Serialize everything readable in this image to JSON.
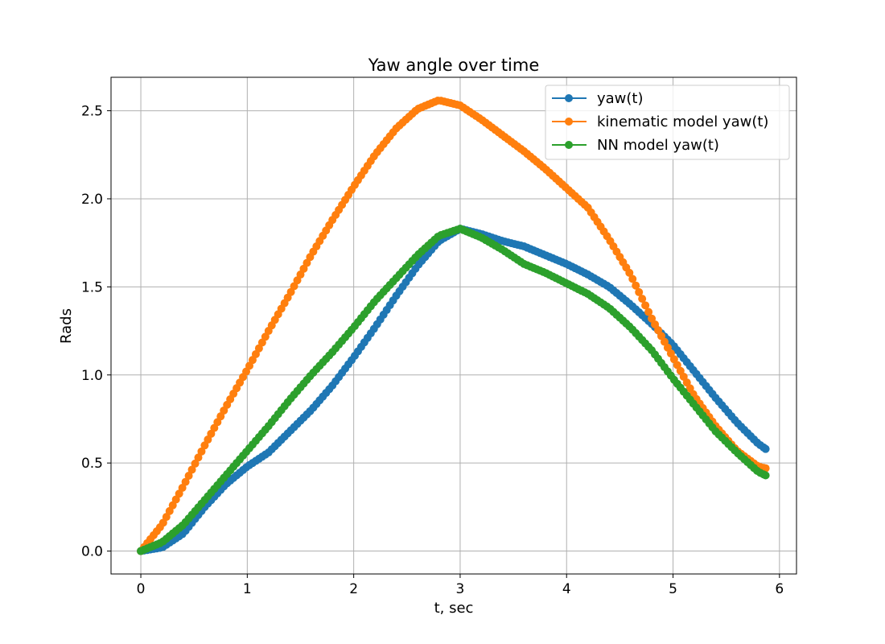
{
  "chart_data": {
    "type": "line",
    "title": "Yaw angle over time",
    "xlabel": "t, sec",
    "ylabel": "Rads",
    "xlim": [
      -0.28,
      6.16
    ],
    "ylim": [
      -0.13,
      2.69
    ],
    "xticks": [
      0,
      1,
      2,
      3,
      4,
      5,
      6
    ],
    "xtick_labels": [
      "0",
      "1",
      "2",
      "3",
      "4",
      "5",
      "6"
    ],
    "yticks": [
      0.0,
      0.5,
      1.0,
      1.5,
      2.0,
      2.5
    ],
    "ytick_labels": [
      "0.0",
      "0.5",
      "1.0",
      "1.5",
      "2.0",
      "2.5"
    ],
    "grid": true,
    "legend_position": "top-right",
    "marker": "circle",
    "x_end": 5.87,
    "sample_step": 0.03,
    "series": [
      {
        "name": "yaw(t)",
        "color": "#1f77b4",
        "points": [
          [
            0,
            0.0
          ],
          [
            0.2,
            0.02
          ],
          [
            0.4,
            0.1
          ],
          [
            0.6,
            0.25
          ],
          [
            0.8,
            0.38
          ],
          [
            1.0,
            0.48
          ],
          [
            1.2,
            0.56
          ],
          [
            1.4,
            0.68
          ],
          [
            1.6,
            0.8
          ],
          [
            1.8,
            0.94
          ],
          [
            2.0,
            1.1
          ],
          [
            2.2,
            1.27
          ],
          [
            2.4,
            1.45
          ],
          [
            2.6,
            1.62
          ],
          [
            2.8,
            1.76
          ],
          [
            3.0,
            1.83
          ],
          [
            3.2,
            1.8
          ],
          [
            3.4,
            1.76
          ],
          [
            3.6,
            1.73
          ],
          [
            3.8,
            1.68
          ],
          [
            4.0,
            1.63
          ],
          [
            4.2,
            1.57
          ],
          [
            4.4,
            1.5
          ],
          [
            4.6,
            1.4
          ],
          [
            4.8,
            1.29
          ],
          [
            5.0,
            1.17
          ],
          [
            5.2,
            1.02
          ],
          [
            5.4,
            0.87
          ],
          [
            5.6,
            0.73
          ],
          [
            5.8,
            0.61
          ],
          [
            5.87,
            0.58
          ]
        ]
      },
      {
        "name": "kinematic model yaw(t)",
        "color": "#ff7f0e",
        "points": [
          [
            0,
            0.0
          ],
          [
            0.2,
            0.15
          ],
          [
            0.4,
            0.37
          ],
          [
            0.6,
            0.6
          ],
          [
            0.8,
            0.82
          ],
          [
            1.0,
            1.03
          ],
          [
            1.2,
            1.25
          ],
          [
            1.4,
            1.46
          ],
          [
            1.6,
            1.68
          ],
          [
            1.8,
            1.88
          ],
          [
            2.0,
            2.07
          ],
          [
            2.2,
            2.25
          ],
          [
            2.4,
            2.4
          ],
          [
            2.6,
            2.51
          ],
          [
            2.8,
            2.56
          ],
          [
            3.0,
            2.53
          ],
          [
            3.2,
            2.45
          ],
          [
            3.4,
            2.36
          ],
          [
            3.6,
            2.27
          ],
          [
            3.8,
            2.17
          ],
          [
            4.0,
            2.06
          ],
          [
            4.2,
            1.95
          ],
          [
            4.4,
            1.77
          ],
          [
            4.6,
            1.57
          ],
          [
            4.8,
            1.32
          ],
          [
            5.0,
            1.1
          ],
          [
            5.2,
            0.88
          ],
          [
            5.4,
            0.71
          ],
          [
            5.6,
            0.57
          ],
          [
            5.8,
            0.48
          ],
          [
            5.87,
            0.47
          ]
        ]
      },
      {
        "name": "NN model yaw(t)",
        "color": "#2ca02c",
        "points": [
          [
            0,
            0.0
          ],
          [
            0.2,
            0.05
          ],
          [
            0.4,
            0.15
          ],
          [
            0.6,
            0.29
          ],
          [
            0.8,
            0.43
          ],
          [
            1.0,
            0.57
          ],
          [
            1.2,
            0.71
          ],
          [
            1.4,
            0.86
          ],
          [
            1.6,
            1.0
          ],
          [
            1.8,
            1.13
          ],
          [
            2.0,
            1.27
          ],
          [
            2.2,
            1.42
          ],
          [
            2.4,
            1.55
          ],
          [
            2.6,
            1.68
          ],
          [
            2.8,
            1.79
          ],
          [
            3.0,
            1.83
          ],
          [
            3.2,
            1.78
          ],
          [
            3.4,
            1.71
          ],
          [
            3.6,
            1.63
          ],
          [
            3.8,
            1.58
          ],
          [
            4.0,
            1.52
          ],
          [
            4.2,
            1.46
          ],
          [
            4.4,
            1.38
          ],
          [
            4.6,
            1.27
          ],
          [
            4.8,
            1.14
          ],
          [
            5.0,
            0.98
          ],
          [
            5.2,
            0.83
          ],
          [
            5.4,
            0.68
          ],
          [
            5.6,
            0.56
          ],
          [
            5.8,
            0.45
          ],
          [
            5.87,
            0.43
          ]
        ]
      }
    ]
  }
}
